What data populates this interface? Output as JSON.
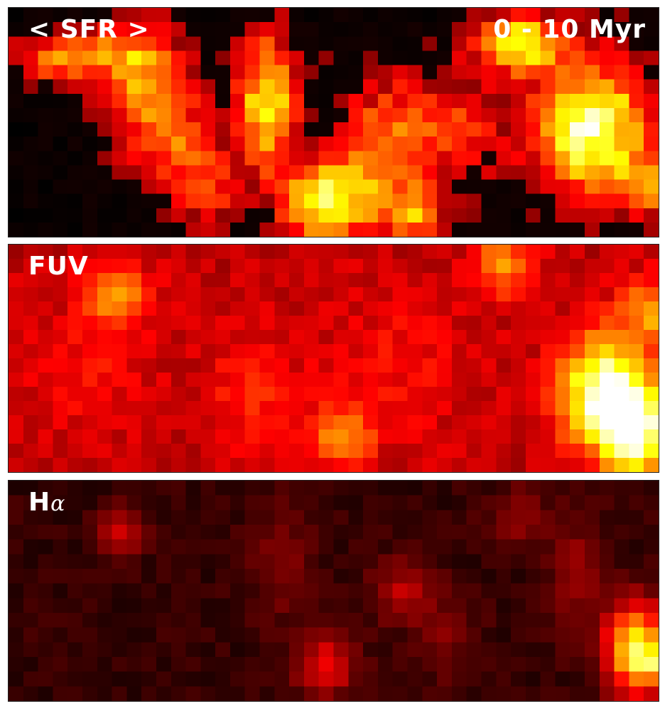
{
  "panels": [
    {
      "label": "< SFR >",
      "label_right": "0 - 10 Myr"
    },
    {
      "label": "FUV"
    },
    {
      "label_main": "H",
      "label_sub": "α"
    }
  ],
  "colormap": "hot"
}
